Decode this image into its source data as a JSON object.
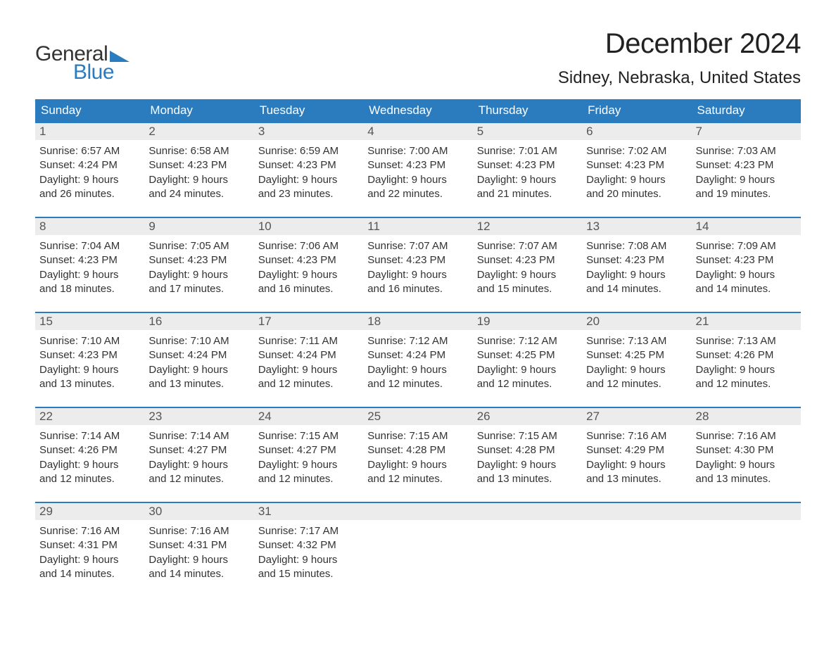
{
  "brand": {
    "line1": "General",
    "line2": "Blue",
    "flag_color": "#2b7bbf"
  },
  "title": "December 2024",
  "location": "Sidney, Nebraska, United States",
  "colors": {
    "header_bg": "#2b7bbf",
    "header_text": "#ffffff",
    "row_rule": "#2b7bbf",
    "daynum_bg": "#ececec",
    "daynum_text": "#555555",
    "body_text": "#333333",
    "page_bg": "#ffffff"
  },
  "dow": [
    "Sunday",
    "Monday",
    "Tuesday",
    "Wednesday",
    "Thursday",
    "Friday",
    "Saturday"
  ],
  "weeks": [
    [
      {
        "n": "1",
        "sunrise": "6:57 AM",
        "sunset": "4:24 PM",
        "dh": "9",
        "dm": "26"
      },
      {
        "n": "2",
        "sunrise": "6:58 AM",
        "sunset": "4:23 PM",
        "dh": "9",
        "dm": "24"
      },
      {
        "n": "3",
        "sunrise": "6:59 AM",
        "sunset": "4:23 PM",
        "dh": "9",
        "dm": "23"
      },
      {
        "n": "4",
        "sunrise": "7:00 AM",
        "sunset": "4:23 PM",
        "dh": "9",
        "dm": "22"
      },
      {
        "n": "5",
        "sunrise": "7:01 AM",
        "sunset": "4:23 PM",
        "dh": "9",
        "dm": "21"
      },
      {
        "n": "6",
        "sunrise": "7:02 AM",
        "sunset": "4:23 PM",
        "dh": "9",
        "dm": "20"
      },
      {
        "n": "7",
        "sunrise": "7:03 AM",
        "sunset": "4:23 PM",
        "dh": "9",
        "dm": "19"
      }
    ],
    [
      {
        "n": "8",
        "sunrise": "7:04 AM",
        "sunset": "4:23 PM",
        "dh": "9",
        "dm": "18"
      },
      {
        "n": "9",
        "sunrise": "7:05 AM",
        "sunset": "4:23 PM",
        "dh": "9",
        "dm": "17"
      },
      {
        "n": "10",
        "sunrise": "7:06 AM",
        "sunset": "4:23 PM",
        "dh": "9",
        "dm": "16"
      },
      {
        "n": "11",
        "sunrise": "7:07 AM",
        "sunset": "4:23 PM",
        "dh": "9",
        "dm": "16"
      },
      {
        "n": "12",
        "sunrise": "7:07 AM",
        "sunset": "4:23 PM",
        "dh": "9",
        "dm": "15"
      },
      {
        "n": "13",
        "sunrise": "7:08 AM",
        "sunset": "4:23 PM",
        "dh": "9",
        "dm": "14"
      },
      {
        "n": "14",
        "sunrise": "7:09 AM",
        "sunset": "4:23 PM",
        "dh": "9",
        "dm": "14"
      }
    ],
    [
      {
        "n": "15",
        "sunrise": "7:10 AM",
        "sunset": "4:23 PM",
        "dh": "9",
        "dm": "13"
      },
      {
        "n": "16",
        "sunrise": "7:10 AM",
        "sunset": "4:24 PM",
        "dh": "9",
        "dm": "13"
      },
      {
        "n": "17",
        "sunrise": "7:11 AM",
        "sunset": "4:24 PM",
        "dh": "9",
        "dm": "12"
      },
      {
        "n": "18",
        "sunrise": "7:12 AM",
        "sunset": "4:24 PM",
        "dh": "9",
        "dm": "12"
      },
      {
        "n": "19",
        "sunrise": "7:12 AM",
        "sunset": "4:25 PM",
        "dh": "9",
        "dm": "12"
      },
      {
        "n": "20",
        "sunrise": "7:13 AM",
        "sunset": "4:25 PM",
        "dh": "9",
        "dm": "12"
      },
      {
        "n": "21",
        "sunrise": "7:13 AM",
        "sunset": "4:26 PM",
        "dh": "9",
        "dm": "12"
      }
    ],
    [
      {
        "n": "22",
        "sunrise": "7:14 AM",
        "sunset": "4:26 PM",
        "dh": "9",
        "dm": "12"
      },
      {
        "n": "23",
        "sunrise": "7:14 AM",
        "sunset": "4:27 PM",
        "dh": "9",
        "dm": "12"
      },
      {
        "n": "24",
        "sunrise": "7:15 AM",
        "sunset": "4:27 PM",
        "dh": "9",
        "dm": "12"
      },
      {
        "n": "25",
        "sunrise": "7:15 AM",
        "sunset": "4:28 PM",
        "dh": "9",
        "dm": "12"
      },
      {
        "n": "26",
        "sunrise": "7:15 AM",
        "sunset": "4:28 PM",
        "dh": "9",
        "dm": "13"
      },
      {
        "n": "27",
        "sunrise": "7:16 AM",
        "sunset": "4:29 PM",
        "dh": "9",
        "dm": "13"
      },
      {
        "n": "28",
        "sunrise": "7:16 AM",
        "sunset": "4:30 PM",
        "dh": "9",
        "dm": "13"
      }
    ],
    [
      {
        "n": "29",
        "sunrise": "7:16 AM",
        "sunset": "4:31 PM",
        "dh": "9",
        "dm": "14"
      },
      {
        "n": "30",
        "sunrise": "7:16 AM",
        "sunset": "4:31 PM",
        "dh": "9",
        "dm": "14"
      },
      {
        "n": "31",
        "sunrise": "7:17 AM",
        "sunset": "4:32 PM",
        "dh": "9",
        "dm": "15"
      },
      null,
      null,
      null,
      null
    ]
  ],
  "labels": {
    "sunrise_prefix": "Sunrise: ",
    "sunset_prefix": "Sunset: ",
    "daylight_prefix": "Daylight: ",
    "hours_word": " hours",
    "and_word": "and ",
    "minutes_word": " minutes."
  }
}
